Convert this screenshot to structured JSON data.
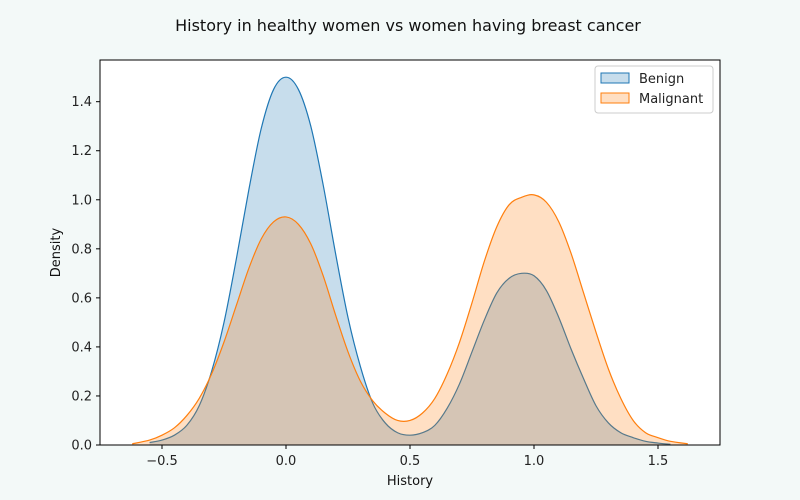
{
  "chart_data": {
    "type": "area",
    "title": "History in healthy women vs women having breast cancer",
    "xlabel": "History",
    "ylabel": "Density",
    "xlim": [
      -0.75,
      1.75
    ],
    "ylim": [
      0,
      1.57
    ],
    "xticks": [
      -0.5,
      0.0,
      0.5,
      1.0,
      1.5
    ],
    "xtick_labels": [
      "−0.5",
      "0.0",
      "0.5",
      "1.0",
      "1.5"
    ],
    "yticks": [
      0.0,
      0.2,
      0.4,
      0.6,
      0.8,
      1.0,
      1.2,
      1.4
    ],
    "ytick_labels": [
      "0.0",
      "0.2",
      "0.4",
      "0.6",
      "0.8",
      "1.0",
      "1.2",
      "1.4"
    ],
    "grid": false,
    "legend_position": "top-right",
    "series": [
      {
        "name": "Benign",
        "color": "#1f77b4",
        "x": [
          -0.55,
          -0.5,
          -0.45,
          -0.4,
          -0.35,
          -0.3,
          -0.25,
          -0.2,
          -0.15,
          -0.1,
          -0.05,
          0.0,
          0.05,
          0.1,
          0.15,
          0.2,
          0.25,
          0.3,
          0.35,
          0.4,
          0.45,
          0.5,
          0.55,
          0.6,
          0.65,
          0.7,
          0.75,
          0.8,
          0.85,
          0.9,
          0.95,
          1.0,
          1.05,
          1.1,
          1.15,
          1.2,
          1.25,
          1.3,
          1.35,
          1.4,
          1.45,
          1.5,
          1.55
        ],
        "y": [
          0.01,
          0.02,
          0.04,
          0.08,
          0.16,
          0.3,
          0.5,
          0.76,
          1.04,
          1.29,
          1.45,
          1.5,
          1.45,
          1.3,
          1.06,
          0.78,
          0.52,
          0.32,
          0.17,
          0.09,
          0.05,
          0.04,
          0.05,
          0.08,
          0.15,
          0.25,
          0.38,
          0.51,
          0.62,
          0.68,
          0.7,
          0.69,
          0.63,
          0.52,
          0.39,
          0.27,
          0.16,
          0.09,
          0.05,
          0.03,
          0.015,
          0.008,
          0.003
        ]
      },
      {
        "name": "Malignant",
        "color": "#ff7f0e",
        "x": [
          -0.62,
          -0.55,
          -0.5,
          -0.45,
          -0.4,
          -0.35,
          -0.3,
          -0.25,
          -0.2,
          -0.15,
          -0.1,
          -0.05,
          0.0,
          0.05,
          0.1,
          0.15,
          0.2,
          0.25,
          0.3,
          0.35,
          0.4,
          0.45,
          0.5,
          0.55,
          0.6,
          0.65,
          0.7,
          0.75,
          0.8,
          0.85,
          0.9,
          0.95,
          1.0,
          1.05,
          1.1,
          1.15,
          1.2,
          1.25,
          1.3,
          1.35,
          1.4,
          1.45,
          1.5,
          1.55,
          1.62
        ],
        "y": [
          0.005,
          0.02,
          0.04,
          0.07,
          0.12,
          0.19,
          0.29,
          0.42,
          0.57,
          0.72,
          0.84,
          0.91,
          0.93,
          0.9,
          0.82,
          0.69,
          0.53,
          0.38,
          0.26,
          0.18,
          0.13,
          0.1,
          0.1,
          0.13,
          0.19,
          0.29,
          0.42,
          0.58,
          0.75,
          0.89,
          0.98,
          1.01,
          1.02,
          0.99,
          0.91,
          0.78,
          0.62,
          0.46,
          0.31,
          0.19,
          0.1,
          0.05,
          0.03,
          0.015,
          0.005
        ]
      }
    ]
  }
}
